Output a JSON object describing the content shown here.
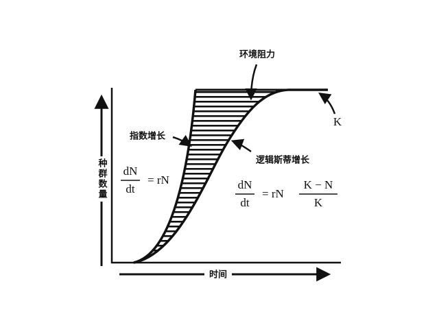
{
  "labels": {
    "environmental_resistance": "环境阻力",
    "carrying_capacity": "K",
    "exponential_growth": "指数增长",
    "logistic_growth": "逻辑斯蒂增长"
  },
  "axes": {
    "y": "种群数量",
    "x": "时间"
  },
  "equations": {
    "exponential": {
      "numerator": "dN",
      "denominator": "dt",
      "rhs": "= rN"
    },
    "logistic": {
      "numerator": "dN",
      "denominator": "dt",
      "rhs": "= rN",
      "factor_numerator": "K − N",
      "factor_denominator": "K"
    }
  }
}
